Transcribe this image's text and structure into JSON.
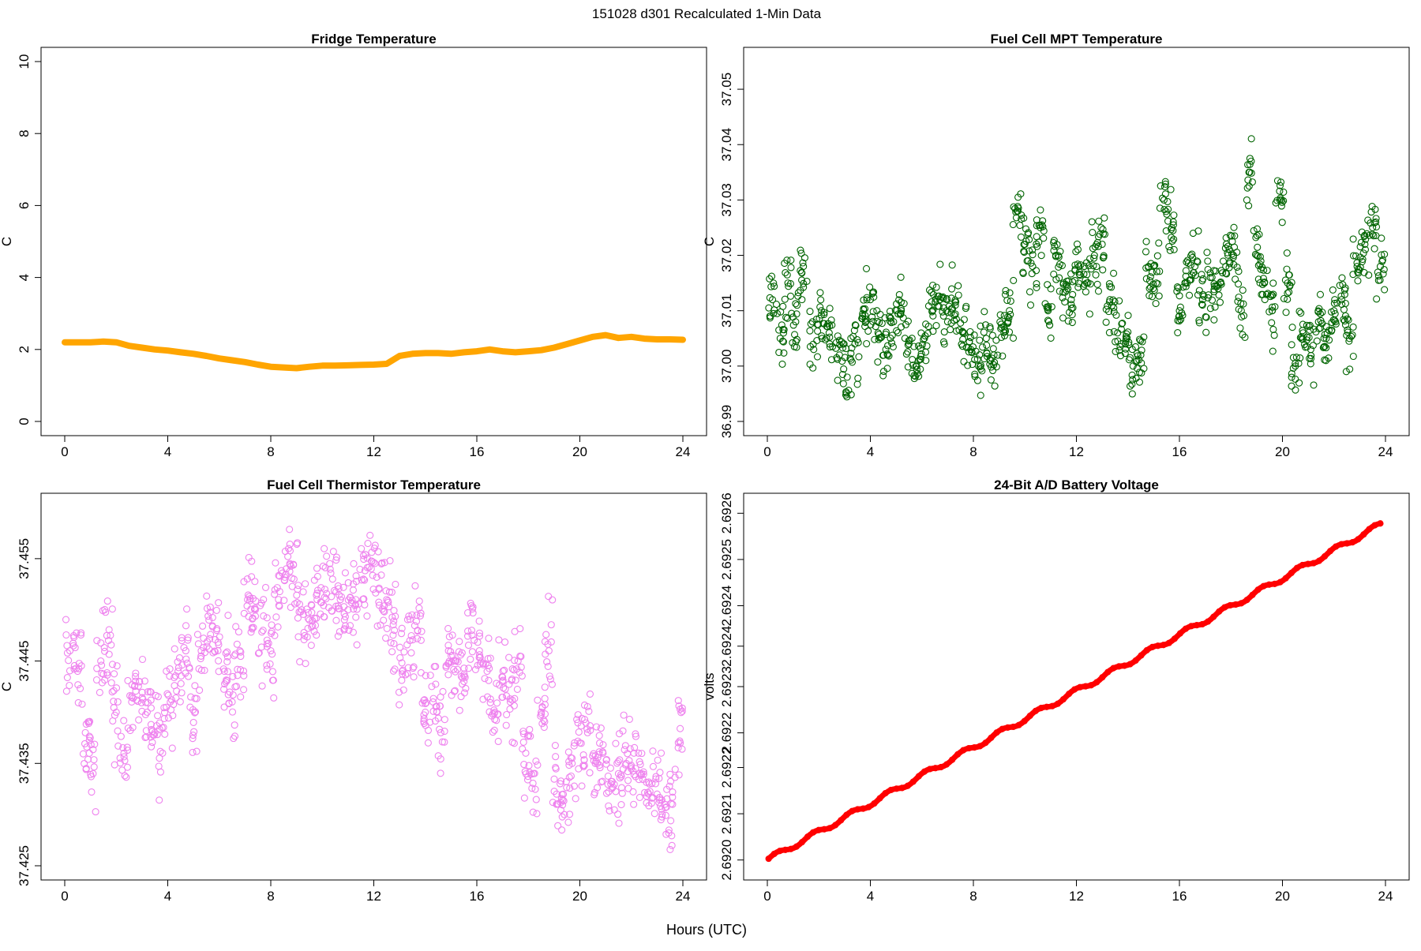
{
  "suptitle": "151028   d301   Recalculated 1-Min Data",
  "xlabel": "Hours (UTC)",
  "chart_data": [
    {
      "id": "fridge",
      "type": "line",
      "title": "Fridge Temperature",
      "xlabel": "Hours (UTC)",
      "ylabel": "C",
      "xlim": [
        0,
        24
      ],
      "ylim": [
        0,
        10
      ],
      "xticks": [
        0,
        4,
        8,
        12,
        16,
        20,
        24
      ],
      "yticks": [
        0,
        2,
        4,
        6,
        8,
        10
      ],
      "color": "#FFA500",
      "marker": "thick-line",
      "x": [
        0,
        0.5,
        1,
        1.5,
        2,
        2.5,
        3,
        3.5,
        4,
        4.5,
        5,
        5.5,
        6,
        6.5,
        7,
        7.5,
        8,
        8.5,
        9,
        9.5,
        10,
        10.5,
        11,
        11.5,
        12,
        12.5,
        13,
        13.5,
        14,
        14.5,
        15,
        15.5,
        16,
        16.5,
        17,
        17.5,
        18,
        18.5,
        19,
        19.5,
        20,
        20.5,
        21,
        21.5,
        22,
        22.5,
        23,
        23.5,
        24
      ],
      "values": [
        2.2,
        2.2,
        2.2,
        2.22,
        2.2,
        2.1,
        2.05,
        2.0,
        1.97,
        1.92,
        1.88,
        1.82,
        1.75,
        1.7,
        1.65,
        1.58,
        1.52,
        1.5,
        1.48,
        1.52,
        1.55,
        1.55,
        1.56,
        1.57,
        1.58,
        1.6,
        1.82,
        1.88,
        1.9,
        1.9,
        1.88,
        1.92,
        1.95,
        2.0,
        1.95,
        1.92,
        1.95,
        1.98,
        2.05,
        2.15,
        2.25,
        2.35,
        2.4,
        2.32,
        2.35,
        2.3,
        2.28,
        2.28,
        2.27
      ]
    },
    {
      "id": "mpt",
      "type": "scatter",
      "title": "Fuel Cell MPT Temperature",
      "xlabel": "Hours (UTC)",
      "ylabel": "C",
      "xlim": [
        0,
        24
      ],
      "ylim": [
        36.99,
        37.055
      ],
      "xticks": [
        0,
        4,
        8,
        12,
        16,
        20,
        24
      ],
      "yticks": [
        "36.99",
        "37.00",
        "37.01",
        "37.02",
        "37.03",
        "37.04",
        "37.05"
      ],
      "color": "#006400",
      "marker": "open-circle",
      "x": [
        0.2,
        0.5,
        0.8,
        1.1,
        1.4,
        1.8,
        2.1,
        2.4,
        2.8,
        3.1,
        3.4,
        3.7,
        4.0,
        4.3,
        4.6,
        4.9,
        5.2,
        5.5,
        5.8,
        6.1,
        6.4,
        6.7,
        7.0,
        7.3,
        7.6,
        7.9,
        8.2,
        8.5,
        8.8,
        9.1,
        9.4,
        9.7,
        10.0,
        10.3,
        10.6,
        10.9,
        11.2,
        11.5,
        11.8,
        12.1,
        12.4,
        12.7,
        13.0,
        13.3,
        13.6,
        13.9,
        14.2,
        14.5,
        14.8,
        15.1,
        15.4,
        15.7,
        16.0,
        16.3,
        16.6,
        16.9,
        17.2,
        17.5,
        17.8,
        18.1,
        18.4,
        18.7,
        19.0,
        19.3,
        19.6,
        19.9,
        20.2,
        20.5,
        20.8,
        21.1,
        21.4,
        21.7,
        22.0,
        22.3,
        22.6,
        22.9,
        23.2,
        23.5,
        23.8
      ],
      "values": [
        37.012,
        37.005,
        37.015,
        37.008,
        37.018,
        37.003,
        37.01,
        37.006,
        37.002,
        36.998,
        37.004,
        37.009,
        37.012,
        37.006,
        37.003,
        37.008,
        37.01,
        37.004,
        37.0,
        37.005,
        37.01,
        37.012,
        37.008,
        37.011,
        37.006,
        37.003,
        37.0,
        37.005,
        37.002,
        37.007,
        37.01,
        37.028,
        37.022,
        37.018,
        37.025,
        37.01,
        37.02,
        37.015,
        37.012,
        37.018,
        37.015,
        37.02,
        37.022,
        37.012,
        37.006,
        37.004,
        37.0,
        37.002,
        37.018,
        37.015,
        37.03,
        37.025,
        37.01,
        37.015,
        37.018,
        37.012,
        37.016,
        37.014,
        37.018,
        37.02,
        37.01,
        37.035,
        37.02,
        37.015,
        37.01,
        37.03,
        37.015,
        37.0,
        37.006,
        37.003,
        37.008,
        37.005,
        37.01,
        37.012,
        37.005,
        37.018,
        37.022,
        37.025,
        37.018
      ]
    },
    {
      "id": "thermistor",
      "type": "scatter",
      "title": "Fuel Cell Thermistor Temperature",
      "xlabel": "Hours (UTC)",
      "ylabel": "C",
      "xlim": [
        0,
        24
      ],
      "ylim": [
        37.425,
        37.46
      ],
      "xticks": [
        0,
        4,
        8,
        12,
        16,
        20,
        24
      ],
      "yticks": [
        "37.425",
        "37.435",
        "37.445",
        "37.455"
      ],
      "color": "#EE82EE",
      "marker": "open-circle",
      "x": [
        0.2,
        0.5,
        0.8,
        1.1,
        1.4,
        1.7,
        2.0,
        2.3,
        2.6,
        2.9,
        3.2,
        3.5,
        3.8,
        4.1,
        4.4,
        4.7,
        5.0,
        5.3,
        5.6,
        5.9,
        6.2,
        6.5,
        6.8,
        7.1,
        7.4,
        7.7,
        8.0,
        8.3,
        8.6,
        8.9,
        9.2,
        9.5,
        9.8,
        10.1,
        10.4,
        10.7,
        11.0,
        11.3,
        11.6,
        11.9,
        12.2,
        12.5,
        12.8,
        13.1,
        13.4,
        13.7,
        14.0,
        14.3,
        14.6,
        14.9,
        15.2,
        15.5,
        15.8,
        16.1,
        16.4,
        16.7,
        17.0,
        17.3,
        17.6,
        17.9,
        18.2,
        18.5,
        18.8,
        19.1,
        19.4,
        19.7,
        20.0,
        20.3,
        20.6,
        20.9,
        21.2,
        21.5,
        21.8,
        22.1,
        22.4,
        22.7,
        23.0,
        23.3,
        23.6,
        23.9
      ],
      "values": [
        37.446,
        37.444,
        37.438,
        37.434,
        37.445,
        37.447,
        37.44,
        37.436,
        37.441,
        37.443,
        37.44,
        37.438,
        37.436,
        37.441,
        37.444,
        37.446,
        37.439,
        37.446,
        37.449,
        37.448,
        37.444,
        37.441,
        37.446,
        37.451,
        37.45,
        37.448,
        37.446,
        37.451,
        37.454,
        37.453,
        37.45,
        37.449,
        37.451,
        37.452,
        37.453,
        37.451,
        37.45,
        37.451,
        37.453,
        37.454,
        37.452,
        37.451,
        37.448,
        37.444,
        37.447,
        37.448,
        37.44,
        37.441,
        37.438,
        37.446,
        37.445,
        37.443,
        37.448,
        37.446,
        37.444,
        37.44,
        37.443,
        37.441,
        37.445,
        37.436,
        37.434,
        37.44,
        37.446,
        37.432,
        37.43,
        37.435,
        37.437,
        37.438,
        37.435,
        37.436,
        37.433,
        37.434,
        37.435,
        37.436,
        37.434,
        37.433,
        37.432,
        37.431,
        37.431,
        37.437
      ]
    },
    {
      "id": "battery",
      "type": "line",
      "title": "24-Bit A/D Battery Voltage",
      "xlabel": "Hours (UTC)",
      "ylabel": "volts",
      "xlim": [
        0,
        24
      ],
      "ylim": [
        2.69199,
        2.69261
      ],
      "xticks": [
        0,
        4,
        8,
        12,
        16,
        20,
        24
      ],
      "yticks": [
        "2.6920",
        "2.6921",
        "2.6922",
        "2.6922",
        "2.6923",
        "2.6924",
        "2.6924",
        "2.6925",
        "2.6926"
      ],
      "ytick_values": [
        2.692,
        2.69208,
        2.69216,
        2.69222,
        2.6923,
        2.69237,
        2.69244,
        2.69252,
        2.6926
      ],
      "color": "#FF0000",
      "marker": "thick-line",
      "start_value": 2.692,
      "end_value": 2.69258,
      "oscillation_amplitude": 4.5e-06,
      "oscillation_period_hours": 1.45
    }
  ]
}
